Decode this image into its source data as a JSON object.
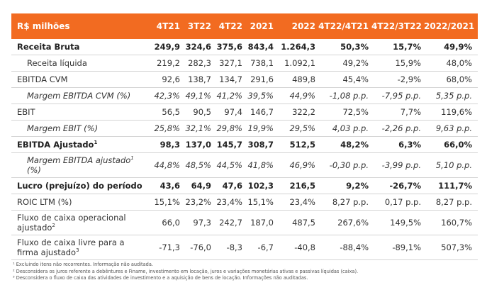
{
  "table": {
    "headers": [
      "R$ milhões",
      "4T21",
      "3T22",
      "4T22",
      "2021",
      "2022",
      "4T22/4T21",
      "4T22/3T22",
      "2022/2021"
    ],
    "rows": [
      {
        "label": "Receita Bruta",
        "sup": "",
        "style": "bold",
        "values": [
          "249,9",
          "324,6",
          "375,6",
          "843,4",
          "1.264,3",
          "50,3%",
          "15,7%",
          "49,9%"
        ]
      },
      {
        "label": "Receita líquida",
        "sup": "",
        "style": "sub",
        "values": [
          "219,2",
          "282,3",
          "327,1",
          "738,1",
          "1.092,1",
          "49,2%",
          "15,9%",
          "48,0%"
        ]
      },
      {
        "label": "EBITDA CVM",
        "sup": "",
        "style": "",
        "values": [
          "92,6",
          "138,7",
          "134,7",
          "291,6",
          "489,8",
          "45,4%",
          "-2,9%",
          "68,0%"
        ]
      },
      {
        "label": "Margem EBITDA CVM (%)",
        "sup": "",
        "style": "italic",
        "values": [
          "42,3%",
          "49,1%",
          "41,2%",
          "39,5%",
          "44,9%",
          "-1,08 p.p.",
          "-7,95 p.p.",
          "5,35 p.p."
        ]
      },
      {
        "label": "EBIT",
        "sup": "",
        "style": "",
        "values": [
          "56,5",
          "90,5",
          "97,4",
          "146,7",
          "322,2",
          "72,5%",
          "7,7%",
          "119,6%"
        ]
      },
      {
        "label": "Margem EBIT (%)",
        "sup": "",
        "style": "italic",
        "values": [
          "25,8%",
          "32,1%",
          "29,8%",
          "19,9%",
          "29,5%",
          "4,03 p.p.",
          "-2,26 p.p.",
          "9,63 p.p."
        ]
      },
      {
        "label": "EBITDA Ajustado",
        "sup": "1",
        "style": "bold",
        "values": [
          "98,3",
          "137,0",
          "145,7",
          "308,7",
          "512,5",
          "48,2%",
          "6,3%",
          "66,0%"
        ]
      },
      {
        "label": "Margem EBITDA ajustado",
        "sup": "1",
        "label2": "(%)",
        "style": "italic",
        "values": [
          "44,8%",
          "48,5%",
          "44,5%",
          "41,8%",
          "46,9%",
          "-0,30 p.p.",
          "-3,99 p.p.",
          "5,10 p.p."
        ]
      },
      {
        "label": "Lucro (prejuízo) do período",
        "sup": "",
        "style": "bold",
        "values": [
          "43,6",
          "64,9",
          "47,6",
          "102,3",
          "216,5",
          "9,2%",
          "-26,7%",
          "111,7%"
        ]
      },
      {
        "label": "ROIC LTM (%)",
        "sup": "",
        "style": "",
        "values": [
          "15,1%",
          "23,2%",
          "23,4%",
          "15,1%",
          "23,4%",
          "8,27 p.p.",
          "0,17 p.p.",
          "8,27 p.p."
        ]
      },
      {
        "label": "Fluxo de caixa operacional ajustado",
        "sup": "2",
        "style": "",
        "values": [
          "66,0",
          "97,3",
          "242,7",
          "187,0",
          "487,5",
          "267,6%",
          "149,5%",
          "160,7%"
        ]
      },
      {
        "label": "Fluxo de caixa livre para a firma ajustado",
        "sup": "3",
        "style": "",
        "values": [
          "-71,3",
          "-76,0",
          "-8,3",
          "-6,7",
          "-40,8",
          "-88,4%",
          "-89,1%",
          "507,3%"
        ]
      }
    ]
  },
  "footnotes": [
    "¹ Excluindo itens não recorrentes. Informação não auditada.",
    "² Desconsidera os juros referente a debêntures e Finame, investimento em locação, juros e variações monetárias ativas e passivas líquidas (caixa).",
    "³ Desconsidera o fluxo de caixa das atividades de investimento e a aquisição de bens de locação. Informações não auditadas."
  ],
  "colors": {
    "header_bg": "#f26b21",
    "header_text": "#ffffff",
    "row_border": "#d4d4d4"
  }
}
